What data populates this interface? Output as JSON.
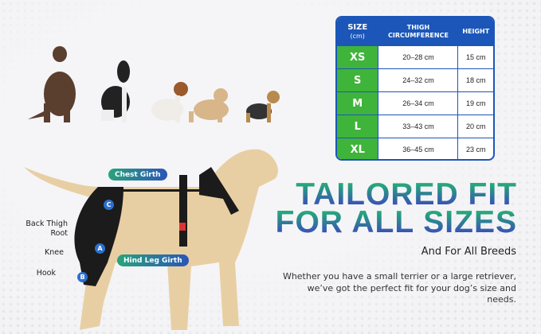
{
  "size_table": {
    "headers": {
      "size": "SIZE",
      "size_unit": "(cm)",
      "thigh": "THIGH CIRCUMFERENCE",
      "height": "HEIGHT"
    },
    "rows": [
      {
        "size": "XS",
        "thigh": "20–28 cm",
        "height": "15 cm"
      },
      {
        "size": "S",
        "thigh": "24–32 cm",
        "height": "18 cm"
      },
      {
        "size": "M",
        "thigh": "26–34 cm",
        "height": "19 cm"
      },
      {
        "size": "L",
        "thigh": "33–43 cm",
        "height": "20 cm"
      },
      {
        "size": "XL",
        "thigh": "36–45 cm",
        "height": "23 cm"
      }
    ]
  },
  "headline": {
    "line1": "TAILORED FIT",
    "line2": "FOR ALL SIZES"
  },
  "subheading": "And For All Breeds",
  "description": "Whether you have a small terrier or a large retriever, we’ve got the perfect fit for your dog’s size and needs.",
  "diagram": {
    "chest_girth": "Chest Girth",
    "hind_leg_girth": "Hind Leg Girth",
    "back_thigh_root": "Back Thigh Root",
    "knee": "Knee",
    "hook": "Hook",
    "markers": [
      "A",
      "B",
      "C"
    ]
  },
  "colors": {
    "table_blue": "#1b56b8",
    "size_green": "#3fb43a",
    "gradient_top": "#22b86e",
    "gradient_bottom": "#3d3fc4"
  }
}
